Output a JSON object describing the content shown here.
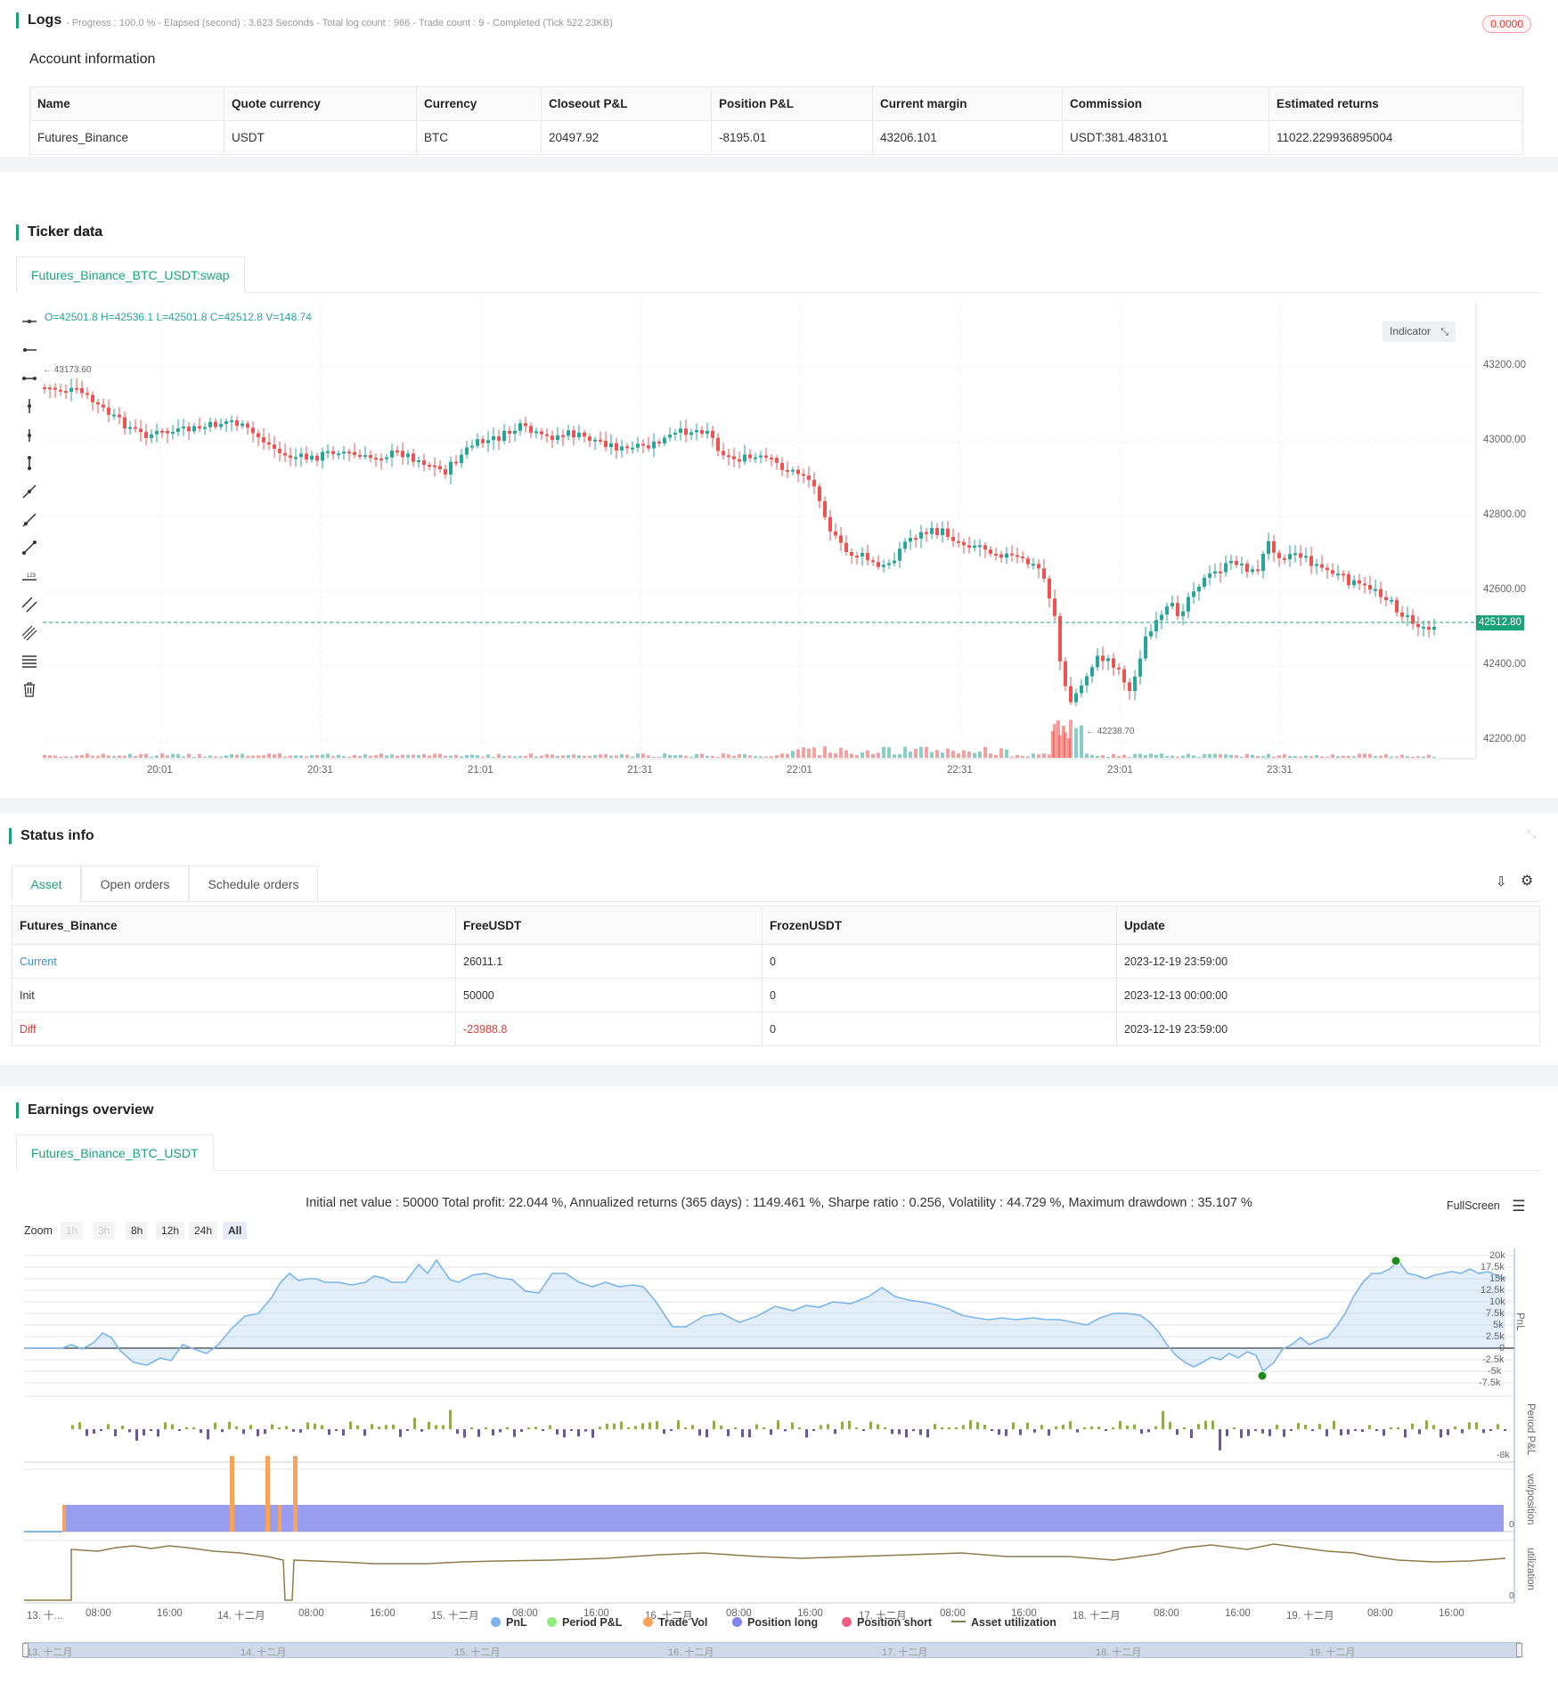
{
  "logs": {
    "title": "Logs",
    "summary": "- Progress : 100.0 % - Elapsed (second) : 3.623  Seconds - Total log count : 966 - Trade count : 9 - Completed (Tick 522.23KB)",
    "badge": "0.0000"
  },
  "account": {
    "title": "Account information",
    "headers": [
      "Name",
      "Quote currency",
      "Currency",
      "Closeout P&L",
      "Position P&L",
      "Current margin",
      "Commission",
      "Estimated returns"
    ],
    "row": [
      "Futures_Binance",
      "USDT",
      "BTC",
      "20497.92",
      "-8195.01",
      "43206.101",
      "USDT:381.483101",
      "11022.229936895004"
    ]
  },
  "ticker": {
    "title": "Ticker data",
    "tab": "Futures_Binance_BTC_USDT:swap",
    "ohlc": "O=42501.8 H=42536.1 L=42501.8 C=42512.8 V=148.74",
    "indicator_button": "Indicator",
    "last_price": "42512.80",
    "high_marker": "43173.60",
    "low_marker": "42238.70",
    "y_ticks": [
      "43200.00",
      "43000.00",
      "42800.00",
      "42600.00",
      "42400.00",
      "42200.00"
    ],
    "x_ticks": [
      "20:01",
      "20:31",
      "21:01",
      "21:31",
      "22:01",
      "22:31",
      "23:01",
      "23:31"
    ],
    "colors": {
      "up": "#26a69a",
      "down": "#ef5350",
      "accent": "#1aa37a"
    }
  },
  "status": {
    "title": "Status info",
    "tabs": [
      "Asset",
      "Open orders",
      "Schedule orders"
    ],
    "headers": [
      "Futures_Binance",
      "FreeUSDT",
      "FrozenUSDT",
      "Update"
    ],
    "rows": [
      [
        "Current",
        "26011.1",
        "0",
        "2023-12-19 23:59:00"
      ],
      [
        "Init",
        "50000",
        "0",
        "2023-12-13 00:00:00"
      ],
      [
        "Diff",
        "-23988.8",
        "0",
        "2023-12-19 23:59:00"
      ]
    ]
  },
  "earnings": {
    "title": "Earnings overview",
    "tab": "Futures_Binance_BTC_USDT",
    "summary": "Initial net value : 50000 Total profit: 22.044 %, Annualized returns (365 days) : 1149.461 %, Sharpe ratio : 0.256, Volatility : 44.729 %, Maximum drawdown : 35.107 %",
    "fullscreen": "FullScreen",
    "zoom_label": "Zoom",
    "zoom_buttons": [
      "1h",
      "3h",
      "8h",
      "12h",
      "24h",
      "All"
    ],
    "pnl_ticks": [
      "20k",
      "17.5k",
      "15k",
      "12.5k",
      "10k",
      "7.5k",
      "5k",
      "2.5k",
      "0",
      "-2.5k",
      "-5k",
      "-7.5k"
    ],
    "axis_titles": [
      "PnL",
      "Period P&L",
      "vol/position",
      "utilization"
    ],
    "period_tick": "-8k",
    "zero_tick_1": "0",
    "zero_tick_2": "0",
    "x_ticks": [
      "13. 十...",
      "08:00",
      "16:00",
      "14. 十二月",
      "08:00",
      "16:00",
      "15. 十二月",
      "08:00",
      "16:00",
      "16. 十二月",
      "08:00",
      "16:00",
      "17. 十二月",
      "08:00",
      "16:00",
      "18. 十二月",
      "08:00",
      "16:00",
      "19. 十二月",
      "08:00",
      "16:00"
    ],
    "navigator_ticks": [
      "13. 十二月",
      "14. 十二月",
      "15. 十二月",
      "16. 十二月",
      "17. 十二月",
      "18. 十二月",
      "19. 十二月"
    ],
    "legend": [
      {
        "label": "PnL",
        "color": "#7cb5ec"
      },
      {
        "label": "Period P&L",
        "color": "#90ed7d"
      },
      {
        "label": "Trade Vol",
        "color": "#f7a35c"
      },
      {
        "label": "Position long",
        "color": "#8085e9"
      },
      {
        "label": "Position short",
        "color": "#f15c80"
      },
      {
        "label": "Asset utilization",
        "color": "#8d7b4a"
      }
    ]
  }
}
